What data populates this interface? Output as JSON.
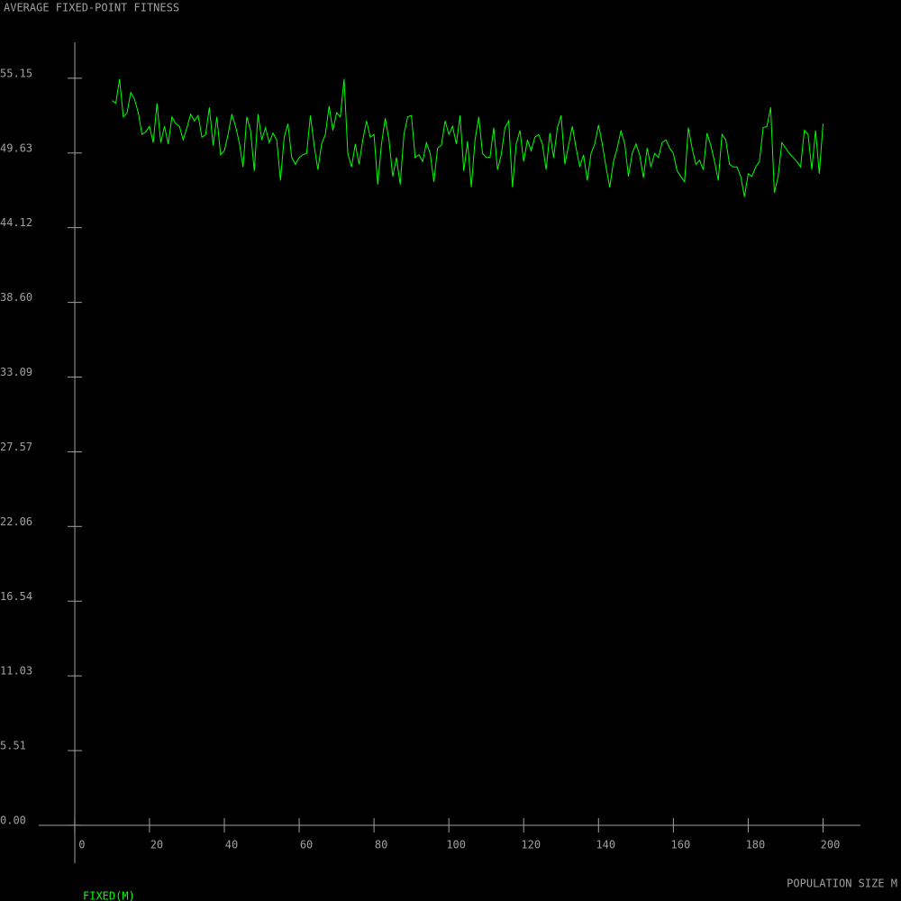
{
  "chart_data": {
    "type": "line",
    "title": "AVERAGE FIXED-POINT FITNESS",
    "xlabel": "POPULATION SIZE M",
    "x": [
      10,
      11,
      12,
      13,
      14,
      15,
      16,
      17,
      18,
      19,
      20,
      21,
      22,
      23,
      24,
      25,
      26,
      27,
      28,
      29,
      30,
      31,
      32,
      33,
      34,
      35,
      36,
      37,
      38,
      39,
      40,
      41,
      42,
      43,
      44,
      45,
      46,
      47,
      48,
      49,
      50,
      51,
      52,
      53,
      54,
      55,
      56,
      57,
      58,
      59,
      60,
      61,
      62,
      63,
      64,
      65,
      66,
      67,
      68,
      69,
      70,
      71,
      72,
      73,
      74,
      75,
      76,
      77,
      78,
      79,
      80,
      81,
      82,
      83,
      84,
      85,
      86,
      87,
      88,
      89,
      90,
      91,
      92,
      93,
      94,
      95,
      96,
      97,
      98,
      99,
      100,
      101,
      102,
      103,
      104,
      105,
      106,
      107,
      108,
      109,
      110,
      111,
      112,
      113,
      114,
      115,
      116,
      117,
      118,
      119,
      120,
      121,
      122,
      123,
      124,
      125,
      126,
      127,
      128,
      129,
      130,
      131,
      132,
      133,
      134,
      135,
      136,
      137,
      138,
      139,
      140,
      141,
      142,
      143,
      144,
      145,
      146,
      147,
      148,
      149,
      150,
      151,
      152,
      153,
      154,
      155,
      156,
      157,
      158,
      159,
      160,
      161,
      162,
      163,
      164,
      165,
      166,
      167,
      168,
      169,
      170,
      171,
      172,
      173,
      174,
      175,
      176,
      177,
      178,
      179,
      180,
      181,
      182,
      183,
      184,
      185,
      186,
      187,
      188,
      189,
      190,
      191,
      192,
      193,
      194,
      195,
      196,
      197,
      198,
      199,
      200
    ],
    "series": [
      {
        "name": "FIXED(M)",
        "color": "#00ff00",
        "values": [
          53.5,
          53.3,
          55.1,
          52.3,
          52.6,
          54.1,
          53.6,
          52.6,
          51.0,
          51.2,
          51.6,
          50.4,
          53.3,
          50.4,
          51.6,
          50.3,
          52.3,
          51.8,
          51.6,
          50.6,
          51.5,
          52.5,
          52.0,
          52.4,
          50.8,
          51.0,
          53.0,
          50.2,
          52.3,
          49.5,
          49.8,
          51.0,
          52.5,
          51.6,
          50.4,
          48.6,
          52.3,
          51.3,
          48.3,
          52.5,
          50.6,
          51.5,
          50.4,
          51.1,
          50.6,
          47.6,
          50.8,
          51.8,
          49.3,
          48.8,
          49.3,
          49.5,
          49.6,
          52.4,
          50.2,
          48.4,
          50.3,
          51.0,
          53.1,
          51.3,
          52.6,
          52.3,
          55.1,
          49.6,
          48.6,
          50.3,
          48.8,
          50.6,
          52.0,
          50.8,
          51.0,
          47.3,
          50.3,
          52.2,
          50.6,
          47.9,
          49.3,
          47.3,
          51.0,
          52.3,
          52.4,
          49.3,
          49.5,
          49.0,
          50.4,
          49.6,
          47.5,
          50.0,
          50.2,
          52.0,
          51.0,
          51.6,
          50.3,
          52.4,
          48.3,
          50.5,
          47.1,
          50.6,
          52.3,
          49.6,
          49.3,
          49.3,
          51.5,
          48.4,
          49.5,
          51.5,
          52.0,
          47.1,
          50.3,
          51.3,
          49.0,
          50.6,
          49.8,
          50.8,
          51.0,
          50.3,
          48.4,
          51.1,
          49.3,
          51.5,
          52.4,
          48.8,
          50.2,
          51.6,
          50.0,
          48.6,
          49.5,
          47.6,
          49.6,
          50.3,
          51.7,
          50.3,
          48.6,
          47.1,
          49.0,
          50.0,
          51.3,
          50.3,
          47.9,
          49.6,
          50.3,
          49.5,
          47.8,
          50.0,
          48.6,
          49.6,
          49.3,
          50.4,
          50.6,
          50.0,
          49.6,
          48.3,
          47.9,
          47.5,
          51.5,
          50.0,
          48.8,
          49.1,
          48.4,
          51.1,
          50.2,
          49.0,
          47.6,
          51.0,
          50.6,
          48.8,
          48.6,
          48.6,
          47.9,
          46.4,
          48.1,
          47.9,
          48.6,
          49.0,
          51.5,
          51.6,
          53.0,
          46.7,
          47.9,
          50.4,
          50.0,
          49.6,
          49.3,
          49.0,
          48.6,
          51.3,
          51.0,
          48.4,
          51.3,
          48.1,
          51.8
        ]
      }
    ],
    "xlim": [
      -9.6,
      210
    ],
    "ylim": [
      -2.8,
      57.8
    ],
    "xticks": [
      0,
      20,
      40,
      60,
      80,
      100,
      120,
      140,
      160,
      180,
      200
    ],
    "yticks": [
      {
        "value": 0,
        "label": "0.00"
      },
      5.51,
      11.03,
      16.54,
      22.06,
      27.57,
      33.09,
      {
        "value": 38.6,
        "label": "38.60"
      },
      44.12,
      49.63,
      55.15
    ]
  }
}
